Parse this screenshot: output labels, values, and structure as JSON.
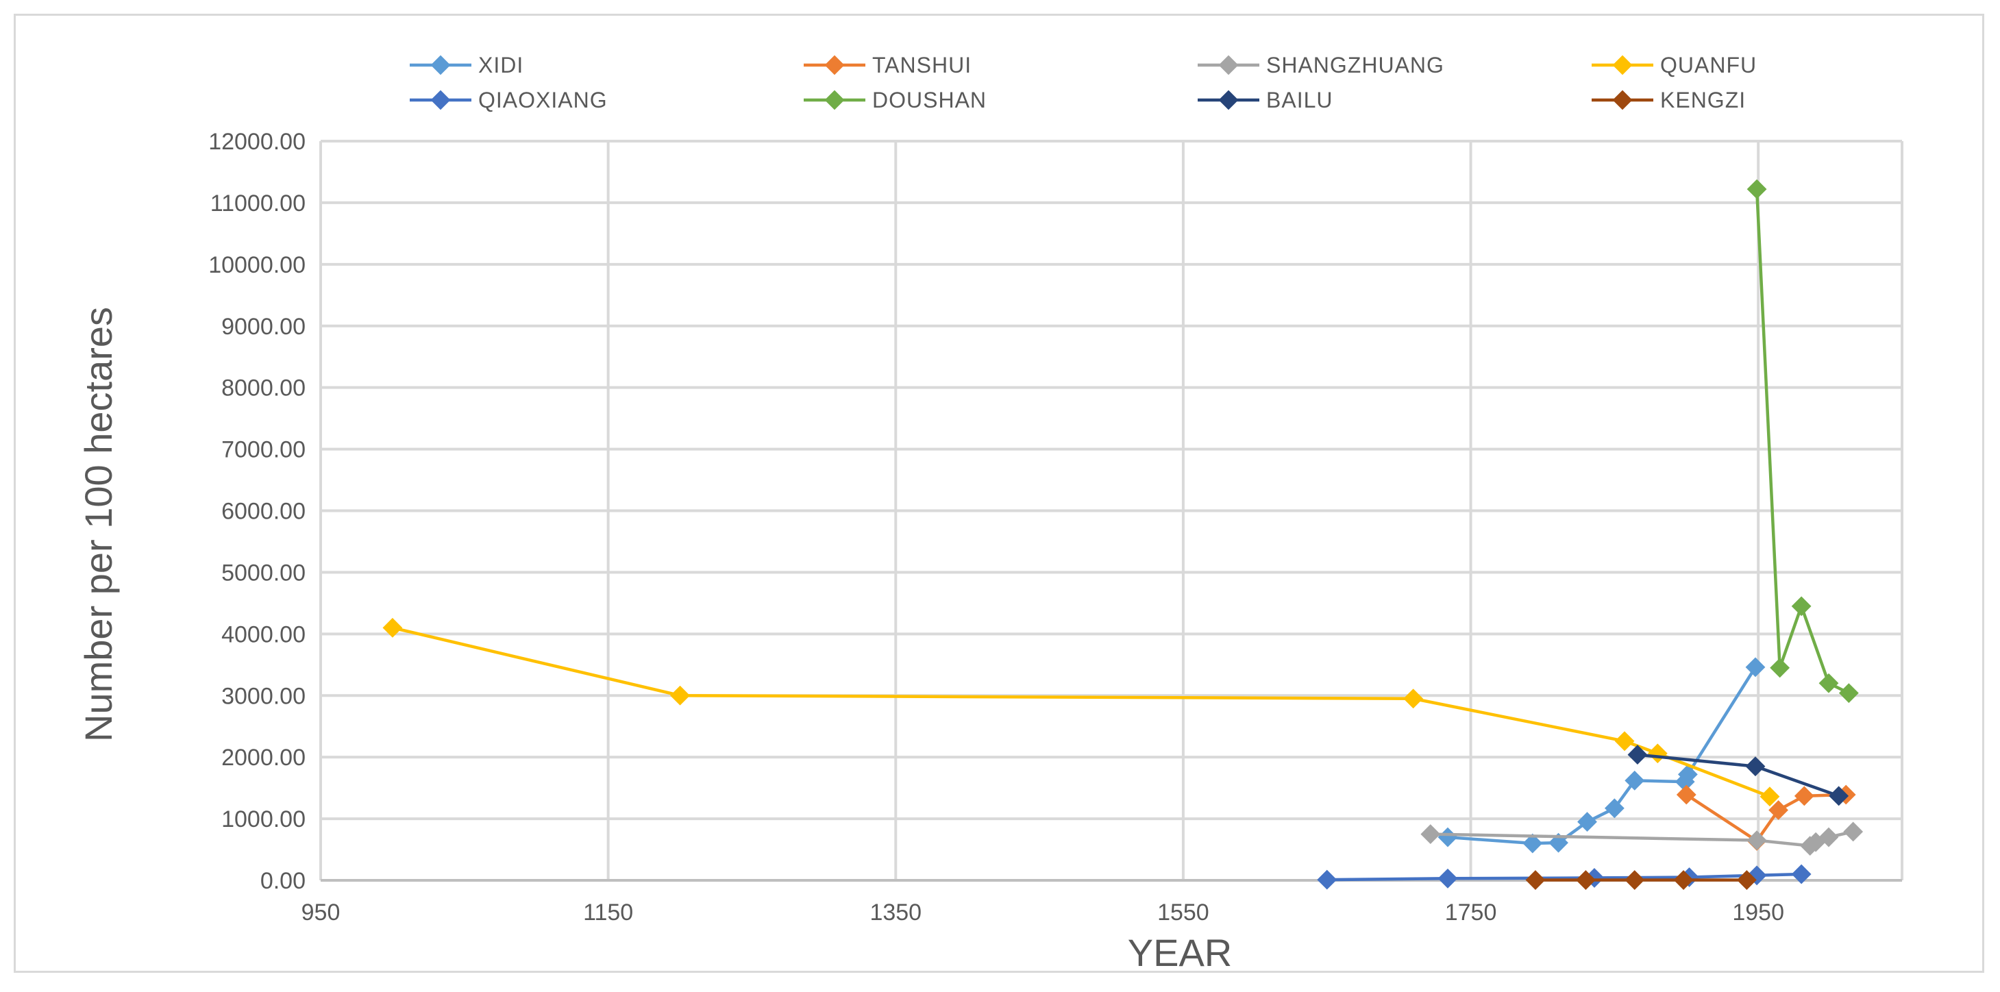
{
  "chart_data": {
    "type": "line",
    "title": "",
    "xlabel": "YEAR",
    "ylabel": "Number per 100 hectares",
    "xlim": [
      950,
      2050
    ],
    "ylim": [
      0,
      12000
    ],
    "x_ticks": [
      950,
      1150,
      1350,
      1550,
      1750,
      1950
    ],
    "x_tick_labels": [
      "950",
      "1150",
      "1350",
      "1550",
      "1750",
      "1950"
    ],
    "y_ticks": [
      0,
      1000,
      2000,
      3000,
      4000,
      5000,
      6000,
      7000,
      8000,
      9000,
      10000,
      11000,
      12000
    ],
    "y_tick_labels": [
      "0.00",
      "1000.00",
      "2000.00",
      "3000.00",
      "4000.00",
      "5000.00",
      "6000.00",
      "7000.00",
      "8000.00",
      "9000.00",
      "10000.00",
      "11000.00",
      "12000.00"
    ],
    "grid": true,
    "legend_position": "top",
    "series": [
      {
        "name": "XIDI",
        "color": "#5b9bd5",
        "x": [
          1734,
          1793,
          1811,
          1831,
          1850,
          1864,
          1899,
          1901,
          1948
        ],
        "y": [
          700,
          600,
          610,
          950,
          1170,
          1620,
          1600,
          1720,
          3460
        ]
      },
      {
        "name": "TANSHUI",
        "color": "#ed7d31",
        "x": [
          1900,
          1949,
          1964,
          1982,
          2011
        ],
        "y": [
          1390,
          640,
          1140,
          1370,
          1390
        ]
      },
      {
        "name": "SHANGZHUANG",
        "color": "#a5a5a5",
        "x": [
          1722,
          1949,
          1986,
          1990,
          1999,
          2016
        ],
        "y": [
          750,
          650,
          560,
          620,
          700,
          790
        ]
      },
      {
        "name": "QUANFU",
        "color": "#ffc000",
        "x": [
          1000,
          1200,
          1710,
          1857,
          1880,
          1958
        ],
        "y": [
          4100,
          3000,
          2950,
          2260,
          2060,
          1360
        ]
      },
      {
        "name": "QIAOXIANG",
        "color": "#4472c4",
        "x": [
          1650,
          1734,
          1836,
          1902,
          1949,
          1980
        ],
        "y": [
          10,
          30,
          40,
          50,
          80,
          100
        ]
      },
      {
        "name": "DOUSHAN",
        "color": "#70ad47",
        "x": [
          1949,
          1965,
          1980,
          1999,
          2013
        ],
        "y": [
          11220,
          3450,
          4450,
          3200,
          3040
        ]
      },
      {
        "name": "BAILU",
        "color": "#264478",
        "x": [
          1866,
          1948,
          2006
        ],
        "y": [
          2040,
          1850,
          1370
        ]
      },
      {
        "name": "KENGZI",
        "color": "#9e480e",
        "x": [
          1795,
          1830,
          1864,
          1898,
          1942
        ],
        "y": [
          5,
          5,
          5,
          5,
          5
        ]
      }
    ]
  }
}
